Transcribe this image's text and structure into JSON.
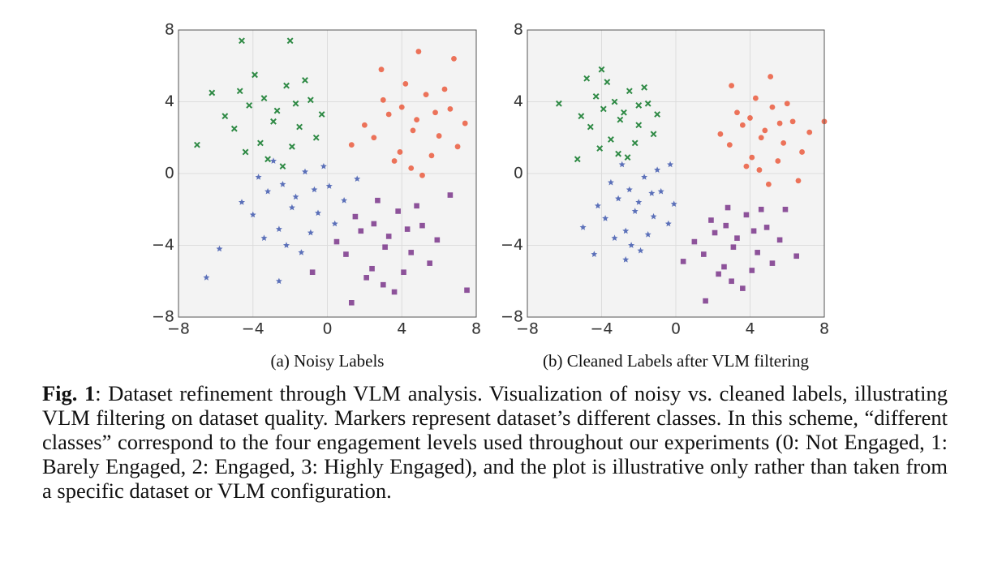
{
  "chart_data": [
    {
      "type": "scatter",
      "caption": "(a) Noisy Labels",
      "xlim": [
        -8,
        8
      ],
      "ylim": [
        -8,
        8
      ],
      "grid": true,
      "xticks": [
        {
          "value": -8,
          "label": "−8"
        },
        {
          "value": -4,
          "label": "−4"
        },
        0,
        4,
        8
      ],
      "yticks": [
        {
          "value": -8,
          "label": "−8"
        },
        {
          "value": -4,
          "label": "−4"
        },
        0,
        4,
        8
      ],
      "series": [
        {
          "color": "#2f8a45",
          "marker": "x",
          "x": [
            -2.7,
            -4.2,
            -1.5,
            -3.6,
            -0.9,
            -5.0,
            -2.2,
            -3.2,
            -1.9,
            -4.7,
            -0.6,
            -3.9,
            -2.9,
            -5.5,
            -1.2,
            -4.4,
            -2.4,
            -0.3,
            -3.4,
            -1.7,
            -6.2,
            -4.6,
            -7.0,
            -2.0
          ],
          "values": [
            3.5,
            3.8,
            2.6,
            1.7,
            4.1,
            2.5,
            4.9,
            0.8,
            1.5,
            4.6,
            2.0,
            5.5,
            2.9,
            3.2,
            5.2,
            1.2,
            0.4,
            3.3,
            4.2,
            3.9,
            4.5,
            7.4,
            1.6,
            7.4
          ]
        },
        {
          "color": "#ea5a3d",
          "marker": "circle",
          "x": [
            4.8,
            3.3,
            6.0,
            3.9,
            6.6,
            2.5,
            5.3,
            4.5,
            5.6,
            3.0,
            7.0,
            4.2,
            4.6,
            2.0,
            6.3,
            3.6,
            5.1,
            7.4,
            4.0,
            5.8,
            1.3,
            2.9,
            6.8,
            4.9
          ],
          "values": [
            3.0,
            3.3,
            2.1,
            1.2,
            3.6,
            2.0,
            4.4,
            0.3,
            1.0,
            4.1,
            1.5,
            5.0,
            2.4,
            2.7,
            4.7,
            0.7,
            -0.1,
            2.8,
            3.7,
            3.4,
            1.6,
            5.8,
            6.4,
            6.8
          ]
        },
        {
          "color": "#4a62b3",
          "marker": "star",
          "x": [
            -1.7,
            -3.2,
            -0.5,
            -2.6,
            0.1,
            -4.0,
            -1.2,
            -2.2,
            -0.9,
            -3.7,
            0.4,
            -2.9,
            -1.9,
            -4.6,
            -0.2,
            -3.4,
            -1.4,
            0.9,
            -2.4,
            -0.7,
            -5.8,
            -6.5,
            1.6,
            -2.6
          ],
          "values": [
            -1.3,
            -1.0,
            -2.2,
            -3.1,
            -0.7,
            -2.3,
            0.1,
            -4.0,
            -3.3,
            -0.2,
            -2.8,
            0.7,
            -1.9,
            -1.6,
            0.4,
            -3.6,
            -4.4,
            -1.5,
            -0.6,
            -0.9,
            -4.2,
            -5.8,
            -0.3,
            -6.0
          ]
        },
        {
          "color": "#7a3589",
          "marker": "square",
          "x": [
            3.3,
            1.8,
            4.5,
            2.4,
            5.1,
            1.0,
            3.8,
            3.0,
            4.1,
            1.5,
            5.5,
            2.7,
            3.1,
            0.5,
            4.8,
            2.1,
            3.6,
            5.9,
            2.5,
            4.3,
            -0.8,
            7.5,
            1.3,
            6.6
          ],
          "values": [
            -3.5,
            -3.2,
            -4.4,
            -5.3,
            -2.9,
            -4.5,
            -2.1,
            -6.2,
            -5.5,
            -2.4,
            -5.0,
            -1.5,
            -4.1,
            -3.8,
            -1.8,
            -5.8,
            -6.6,
            -3.7,
            -2.8,
            -3.1,
            -5.5,
            -6.5,
            -7.2,
            -1.2
          ]
        }
      ]
    },
    {
      "type": "scatter",
      "caption": "(b) Cleaned Labels after VLM filtering",
      "xlim": [
        -8,
        8
      ],
      "ylim": [
        -8,
        8
      ],
      "grid": true,
      "xticks": [
        {
          "value": -8,
          "label": "−8"
        },
        {
          "value": -4,
          "label": "−4"
        },
        0,
        4,
        8
      ],
      "yticks": [
        {
          "value": -8,
          "label": "−8"
        },
        {
          "value": -4,
          "label": "−4"
        },
        0,
        4,
        8
      ],
      "series": [
        {
          "color": "#2f8a45",
          "marker": "x",
          "x": [
            -2.8,
            -3.9,
            -2.0,
            -3.5,
            -1.5,
            -4.6,
            -2.5,
            -3.1,
            -2.2,
            -4.3,
            -1.2,
            -3.7,
            -3.0,
            -5.1,
            -1.7,
            -4.1,
            -2.6,
            -1.0,
            -3.3,
            -2.0,
            -4.8,
            -5.3,
            -6.3,
            -4.0
          ],
          "values": [
            3.4,
            3.6,
            2.7,
            1.9,
            3.9,
            2.6,
            4.6,
            1.1,
            1.7,
            4.3,
            2.2,
            5.1,
            3.0,
            3.2,
            4.8,
            1.4,
            0.9,
            3.3,
            4.0,
            3.8,
            5.3,
            0.8,
            3.9,
            5.8
          ]
        },
        {
          "color": "#ea5a3d",
          "marker": "circle",
          "x": [
            4.8,
            3.6,
            5.8,
            4.1,
            6.3,
            2.9,
            5.2,
            4.5,
            5.5,
            3.3,
            6.8,
            4.3,
            4.6,
            2.4,
            6.0,
            3.8,
            5.0,
            7.2,
            4.0,
            5.6,
            8.0,
            3.0,
            6.6,
            5.1
          ],
          "values": [
            2.4,
            2.7,
            1.7,
            0.9,
            2.9,
            1.6,
            3.7,
            0.2,
            0.7,
            3.4,
            1.2,
            4.2,
            2.0,
            2.2,
            3.9,
            0.4,
            -0.6,
            2.3,
            3.1,
            2.8,
            2.9,
            4.9,
            -0.4,
            5.4
          ]
        },
        {
          "color": "#4a62b3",
          "marker": "star",
          "x": [
            -2.0,
            -3.1,
            -1.2,
            -2.7,
            -0.8,
            -3.8,
            -1.7,
            -2.4,
            -1.5,
            -3.5,
            -0.4,
            -2.9,
            -2.2,
            -4.2,
            -1.0,
            -3.3,
            -1.9,
            -0.1,
            -2.5,
            -1.3,
            -5.0,
            -0.3,
            -4.4,
            -2.7
          ],
          "values": [
            -1.6,
            -1.4,
            -2.4,
            -3.2,
            -1.0,
            -2.5,
            -0.2,
            -4.0,
            -3.4,
            -0.5,
            -2.8,
            0.5,
            -2.1,
            -1.8,
            0.2,
            -3.6,
            -4.3,
            -1.7,
            -0.9,
            -1.1,
            -3.0,
            0.5,
            -4.5,
            -4.8
          ]
        },
        {
          "color": "#7a3589",
          "marker": "square",
          "x": [
            3.3,
            2.1,
            4.4,
            2.6,
            4.9,
            1.5,
            3.8,
            3.0,
            4.1,
            1.9,
            5.2,
            2.8,
            3.1,
            1.0,
            4.6,
            2.3,
            3.6,
            5.6,
            2.7,
            4.2,
            0.4,
            6.5,
            1.6,
            5.9
          ],
          "values": [
            -3.6,
            -3.3,
            -4.4,
            -5.2,
            -3.0,
            -4.5,
            -2.3,
            -6.0,
            -5.4,
            -2.6,
            -5.0,
            -1.9,
            -4.1,
            -3.8,
            -2.0,
            -5.6,
            -6.4,
            -3.7,
            -2.9,
            -3.2,
            -4.9,
            -4.6,
            -7.1,
            -2.0
          ]
        }
      ]
    }
  ],
  "figure_caption": {
    "label": "Fig. 1",
    "text": ": Dataset refinement through VLM analysis. Visualization of noisy vs. cleaned labels, illustrating VLM filtering on dataset quality. Markers represent dataset’s different classes. In this scheme, “different classes” correspond to the four engagement levels used throughout our experiments (0: Not Engaged, 1: Barely Engaged, 2: Engaged, 3: Highly Engaged), and the plot is illustrative only rather than taken from a specific dataset or VLM configuration."
  }
}
